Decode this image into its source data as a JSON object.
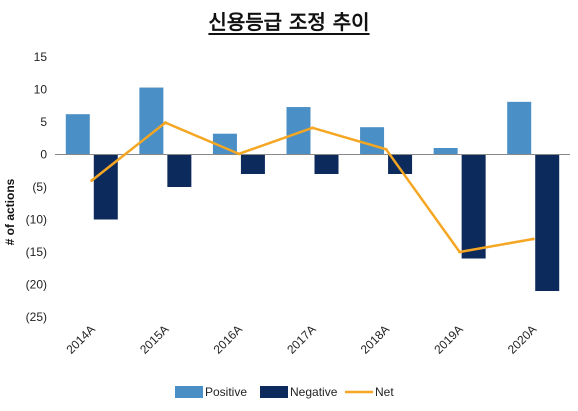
{
  "chart_data": {
    "type": "bar",
    "title": "신용등급 조정 추이",
    "xlabel": "",
    "ylabel": "# of actions",
    "categories": [
      "2014A",
      "2015A",
      "2016A",
      "2017A",
      "2018A",
      "2019A",
      "2020A"
    ],
    "series": [
      {
        "name": "Positive",
        "kind": "bar",
        "color": "#4a8fc5",
        "values": [
          6.2,
          10.3,
          3.2,
          7.3,
          4.2,
          1.0,
          8.1
        ]
      },
      {
        "name": "Negative",
        "kind": "bar",
        "color": "#0d2a5c",
        "values": [
          -10,
          -5,
          -3,
          -3,
          -3,
          -16,
          -21
        ]
      },
      {
        "name": "Net",
        "kind": "line",
        "color": "#f5a623",
        "values": [
          -4,
          4.9,
          0.1,
          4.1,
          0.8,
          -15,
          -13
        ]
      }
    ],
    "ylim": [
      -25,
      15
    ],
    "yticks": [
      15,
      10,
      5,
      0,
      -5,
      -10,
      -15,
      -20,
      -25
    ],
    "ytick_labels": [
      "15",
      "10",
      "5",
      "0",
      "(5)",
      "(10)",
      "(15)",
      "(20)",
      "(25)"
    ],
    "grid": false,
    "legend_position": "bottom"
  }
}
